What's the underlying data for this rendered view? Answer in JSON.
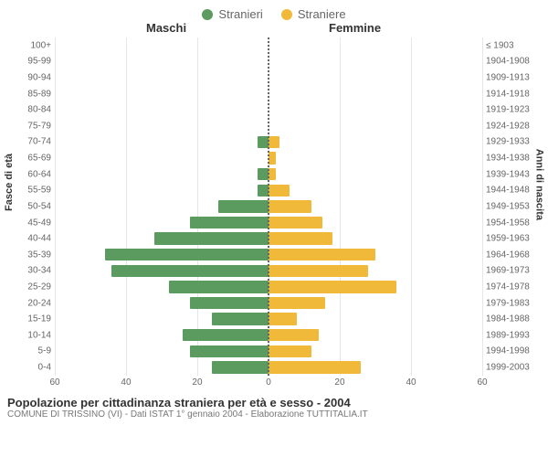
{
  "legend": {
    "male": {
      "label": "Stranieri",
      "color": "#5b9b5f"
    },
    "female": {
      "label": "Straniere",
      "color": "#f1b93a"
    }
  },
  "headers": {
    "male": "Maschi",
    "female": "Femmine"
  },
  "y_axis_left": "Fasce di età",
  "y_axis_right": "Anni di nascita",
  "chart": {
    "type": "population-pyramid",
    "x_max": 60,
    "x_ticks_left": [
      60,
      40,
      20,
      0
    ],
    "x_ticks_right": [
      0,
      20,
      40,
      60
    ],
    "grid_color": "#e6e6e6",
    "background": "#ffffff",
    "center_line_color": "#666666",
    "label_fontsize": 10,
    "rows": [
      {
        "age": "100+",
        "birth": "≤ 1903",
        "m": 0,
        "f": 0
      },
      {
        "age": "95-99",
        "birth": "1904-1908",
        "m": 0,
        "f": 0
      },
      {
        "age": "90-94",
        "birth": "1909-1913",
        "m": 0,
        "f": 0
      },
      {
        "age": "85-89",
        "birth": "1914-1918",
        "m": 0,
        "f": 0
      },
      {
        "age": "80-84",
        "birth": "1919-1923",
        "m": 0,
        "f": 0
      },
      {
        "age": "75-79",
        "birth": "1924-1928",
        "m": 0,
        "f": 0
      },
      {
        "age": "70-74",
        "birth": "1929-1933",
        "m": 3,
        "f": 3
      },
      {
        "age": "65-69",
        "birth": "1934-1938",
        "m": 0,
        "f": 2
      },
      {
        "age": "60-64",
        "birth": "1939-1943",
        "m": 3,
        "f": 2
      },
      {
        "age": "55-59",
        "birth": "1944-1948",
        "m": 3,
        "f": 6
      },
      {
        "age": "50-54",
        "birth": "1949-1953",
        "m": 14,
        "f": 12
      },
      {
        "age": "45-49",
        "birth": "1954-1958",
        "m": 22,
        "f": 15
      },
      {
        "age": "40-44",
        "birth": "1959-1963",
        "m": 32,
        "f": 18
      },
      {
        "age": "35-39",
        "birth": "1964-1968",
        "m": 46,
        "f": 30
      },
      {
        "age": "30-34",
        "birth": "1969-1973",
        "m": 44,
        "f": 28
      },
      {
        "age": "25-29",
        "birth": "1974-1978",
        "m": 28,
        "f": 36
      },
      {
        "age": "20-24",
        "birth": "1979-1983",
        "m": 22,
        "f": 16
      },
      {
        "age": "15-19",
        "birth": "1984-1988",
        "m": 16,
        "f": 8
      },
      {
        "age": "10-14",
        "birth": "1989-1993",
        "m": 24,
        "f": 14
      },
      {
        "age": "5-9",
        "birth": "1994-1998",
        "m": 22,
        "f": 12
      },
      {
        "age": "0-4",
        "birth": "1999-2003",
        "m": 16,
        "f": 26
      }
    ]
  },
  "footer": {
    "title": "Popolazione per cittadinanza straniera per età e sesso - 2004",
    "subtitle": "COMUNE DI TRISSINO (VI) - Dati ISTAT 1° gennaio 2004 - Elaborazione TUTTITALIA.IT"
  }
}
